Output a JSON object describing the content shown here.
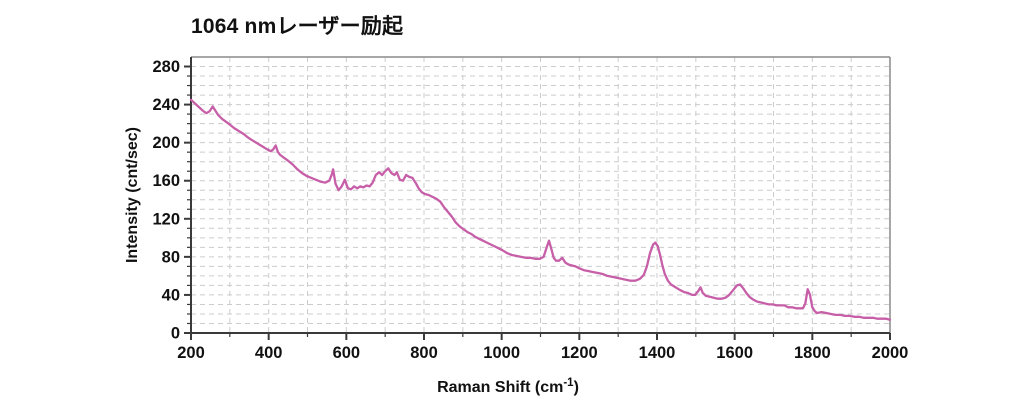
{
  "chart_data": {
    "type": "line",
    "title": "1064 nmレーザー励起",
    "xlabel": "Raman Shift (cm⁻¹)",
    "xlabel_prefix": "Raman Shift (cm",
    "xlabel_sup": "-1",
    "xlabel_suffix": ")",
    "ylabel": "Intensity (cnt/sec)",
    "xlim": [
      200,
      2000
    ],
    "ylim": [
      0,
      290
    ],
    "x_major_ticks": [
      200,
      400,
      600,
      800,
      1000,
      1200,
      1400,
      1600,
      1800,
      2000
    ],
    "y_major_ticks": [
      0,
      40,
      80,
      120,
      160,
      200,
      240,
      280
    ],
    "x_minor_step": 100,
    "y_minor_step": 10,
    "grid": "dashed",
    "grid_color": "#cccccc",
    "line_color": "#c75fa8",
    "axis_color": "#3a3a3a",
    "frame_color": "#8a8a8a",
    "series": [
      {
        "x": [
          200,
          208,
          216,
          224,
          232,
          240,
          248,
          256,
          262,
          270,
          280,
          290,
          300,
          312,
          324,
          336,
          348,
          360,
          372,
          384,
          396,
          406,
          412,
          418,
          424,
          430,
          440,
          450,
          462,
          474,
          486,
          498,
          510,
          522,
          534,
          546,
          556,
          562,
          566,
          572,
          580,
          588,
          596,
          604,
          612,
          620,
          628,
          636,
          644,
          652,
          660,
          668,
          676,
          684,
          692,
          700,
          708,
          716,
          724,
          730,
          738,
          746,
          754,
          762,
          770,
          778,
          786,
          794,
          802,
          812,
          822,
          832,
          842,
          852,
          862,
          872,
          882,
          892,
          902,
          912,
          922,
          932,
          942,
          952,
          962,
          972,
          982,
          992,
          1002,
          1014,
          1026,
          1038,
          1050,
          1062,
          1074,
          1086,
          1098,
          1108,
          1116,
          1122,
          1128,
          1134,
          1140,
          1148,
          1156,
          1164,
          1172,
          1180,
          1190,
          1200,
          1212,
          1224,
          1236,
          1248,
          1260,
          1272,
          1284,
          1296,
          1308,
          1320,
          1332,
          1344,
          1356,
          1366,
          1374,
          1382,
          1390,
          1396,
          1402,
          1408,
          1414,
          1420,
          1428,
          1436,
          1444,
          1452,
          1460,
          1470,
          1480,
          1490,
          1498,
          1506,
          1512,
          1518,
          1526,
          1536,
          1546,
          1556,
          1566,
          1576,
          1586,
          1596,
          1606,
          1614,
          1622,
          1630,
          1638,
          1648,
          1658,
          1668,
          1678,
          1688,
          1698,
          1708,
          1718,
          1728,
          1738,
          1748,
          1758,
          1768,
          1776,
          1782,
          1788,
          1794,
          1800,
          1806,
          1812,
          1824,
          1836,
          1848,
          1860,
          1872,
          1884,
          1896,
          1908,
          1920,
          1932,
          1944,
          1956,
          1968,
          1980,
          1990,
          2000
        ],
        "y": [
          245,
          242,
          239,
          236,
          233,
          231,
          233,
          238,
          234,
          229,
          225,
          222,
          219,
          215,
          212,
          209,
          205,
          202,
          199,
          196,
          193,
          191,
          193,
          197,
          190,
          187,
          184,
          181,
          177,
          172,
          168,
          165,
          163,
          161,
          159,
          158,
          160,
          166,
          172,
          157,
          150,
          154,
          161,
          152,
          151,
          154,
          152,
          154,
          153,
          155,
          154,
          158,
          166,
          169,
          166,
          170,
          173,
          168,
          166,
          169,
          161,
          160,
          166,
          164,
          163,
          158,
          152,
          148,
          146,
          145,
          143,
          141,
          138,
          132,
          127,
          122,
          116,
          112,
          109,
          106,
          104,
          101,
          99,
          97,
          95,
          93,
          91,
          89,
          87,
          84,
          82,
          81,
          80,
          79,
          79,
          78,
          78,
          80,
          90,
          97,
          88,
          79,
          76,
          76,
          79,
          74,
          72,
          71,
          70,
          68,
          66,
          65,
          64,
          63,
          62,
          60,
          59,
          58,
          57,
          56,
          55,
          55,
          57,
          61,
          70,
          84,
          93,
          95,
          91,
          82,
          71,
          62,
          55,
          51,
          49,
          47,
          45,
          43,
          42,
          40,
          40,
          44,
          48,
          42,
          39,
          38,
          37,
          36,
          36,
          37,
          40,
          45,
          50,
          51,
          47,
          42,
          38,
          35,
          33,
          32,
          31,
          30,
          30,
          29,
          29,
          29,
          27,
          27,
          26,
          26,
          26,
          31,
          46,
          40,
          27,
          23,
          21,
          22,
          21,
          20,
          19,
          19,
          18,
          18,
          17,
          17,
          16,
          16,
          16,
          15,
          15,
          15,
          14
        ]
      }
    ]
  }
}
